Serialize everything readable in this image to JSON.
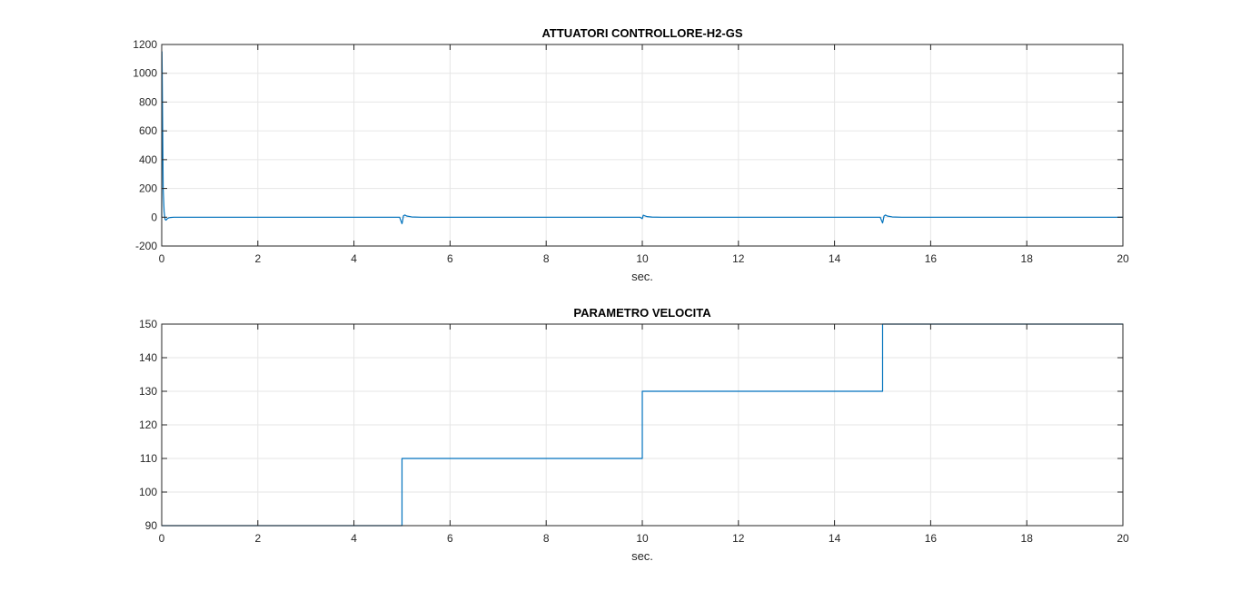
{
  "colors": {
    "line": "#0072BD",
    "grid": "#e6e6e6",
    "axis": "#262626",
    "background": "#ffffff"
  },
  "chart_data": [
    {
      "type": "line",
      "title": "ATTUATORI CONTROLLORE-H2-GS",
      "xlabel": "sec.",
      "ylabel": "",
      "xlim": [
        0,
        20
      ],
      "ylim": [
        -200,
        1200
      ],
      "xticks": [
        "0",
        "2",
        "4",
        "6",
        "8",
        "10",
        "12",
        "14",
        "16",
        "18",
        "20"
      ],
      "yticks": [
        "-200",
        "0",
        "200",
        "400",
        "600",
        "800",
        "1000",
        "1200"
      ],
      "grid": true,
      "series": [
        {
          "x": [
            0,
            0.005,
            0.01,
            0.02,
            0.03,
            0.05,
            0.07,
            0.09,
            0.11,
            0.14,
            0.18,
            0.25,
            0.4,
            1,
            2,
            3,
            4,
            4.95,
            5.0,
            5.01,
            5.03,
            5.06,
            5.1,
            5.2,
            5.4,
            6,
            7,
            8,
            9,
            9.95,
            10.0,
            10.02,
            10.05,
            10.1,
            10.2,
            10.4,
            11,
            12,
            13,
            14,
            14.95,
            15.0,
            15.01,
            15.03,
            15.06,
            15.1,
            15.2,
            15.4,
            16,
            17,
            18,
            19,
            20
          ],
          "y": [
            0,
            1150,
            1000,
            600,
            200,
            40,
            -15,
            -20,
            -12,
            -5,
            -2,
            0,
            0,
            0,
            0,
            0,
            0,
            0,
            -45,
            -30,
            10,
            15,
            8,
            2,
            0,
            0,
            0,
            0,
            0,
            0,
            -10,
            14,
            10,
            4,
            1,
            0,
            0,
            0,
            0,
            0,
            0,
            -40,
            -25,
            8,
            15,
            8,
            2,
            0,
            0,
            0,
            0,
            0,
            0
          ]
        }
      ]
    },
    {
      "type": "line",
      "title": "PARAMETRO VELOCITA",
      "xlabel": "sec.",
      "ylabel": "",
      "xlim": [
        0,
        20
      ],
      "ylim": [
        90,
        150
      ],
      "xticks": [
        "0",
        "2",
        "4",
        "6",
        "8",
        "10",
        "12",
        "14",
        "16",
        "18",
        "20"
      ],
      "yticks": [
        "90",
        "100",
        "110",
        "120",
        "130",
        "140",
        "150"
      ],
      "grid": true,
      "series": [
        {
          "x": [
            0,
            5,
            5,
            10,
            10,
            15,
            15,
            20
          ],
          "y": [
            90,
            90,
            110,
            110,
            130,
            130,
            150,
            150
          ]
        }
      ]
    }
  ]
}
